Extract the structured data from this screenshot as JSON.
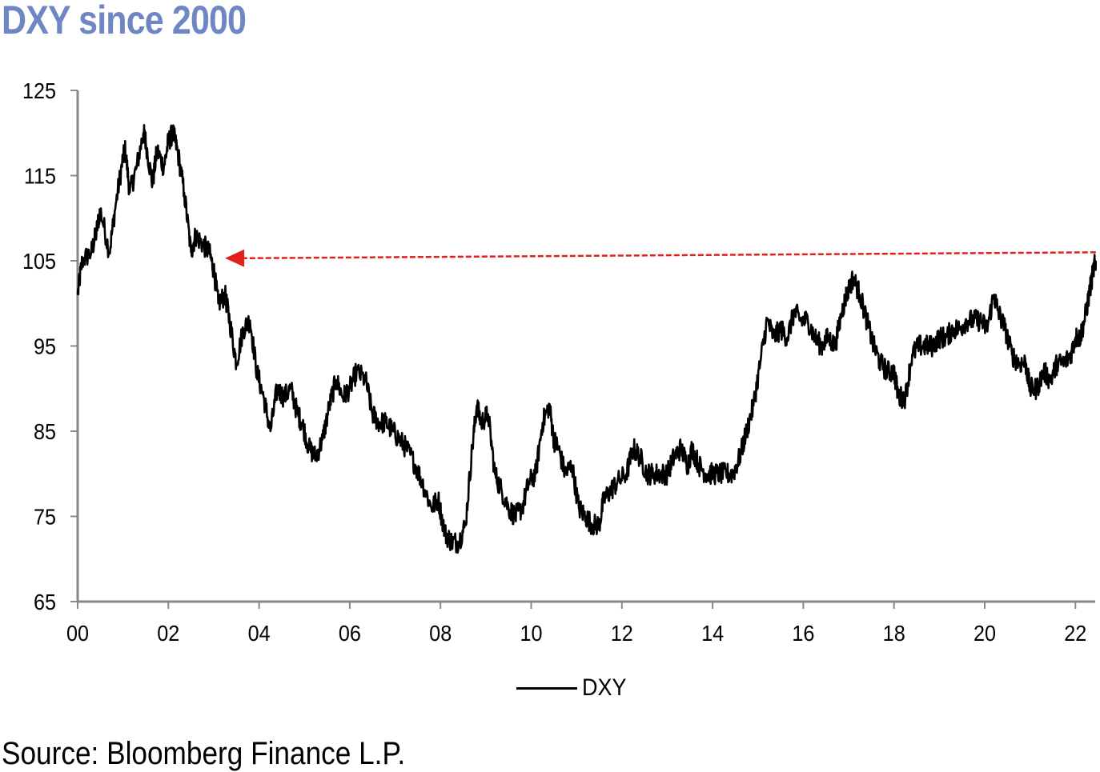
{
  "chart_data": {
    "type": "line",
    "title": "DXY since 2000",
    "source": "Source: Bloomberg Finance L.P.",
    "legend": {
      "position": "bottom-center"
    },
    "colors": {
      "title": "#6f86c4",
      "series": "#000000",
      "annotation": "#e0201b"
    },
    "xlim": [
      2000,
      2022.5
    ],
    "ylim": [
      65,
      125
    ],
    "x_ticks": [
      {
        "value": 2000,
        "label": "00"
      },
      {
        "value": 2002,
        "label": "02"
      },
      {
        "value": 2004,
        "label": "04"
      },
      {
        "value": 2006,
        "label": "06"
      },
      {
        "value": 2008,
        "label": "08"
      },
      {
        "value": 2010,
        "label": "10"
      },
      {
        "value": 2012,
        "label": "12"
      },
      {
        "value": 2014,
        "label": "14"
      },
      {
        "value": 2016,
        "label": "16"
      },
      {
        "value": 2018,
        "label": "18"
      },
      {
        "value": 2020,
        "label": "20"
      },
      {
        "value": 2022,
        "label": "22"
      }
    ],
    "y_ticks": [
      {
        "value": 125,
        "label": "125"
      },
      {
        "value": 115,
        "label": "115"
      },
      {
        "value": 105,
        "label": "105"
      },
      {
        "value": 95,
        "label": "95"
      },
      {
        "value": 85,
        "label": "85"
      },
      {
        "value": 75,
        "label": "75"
      },
      {
        "value": 65,
        "label": "65"
      }
    ],
    "series": [
      {
        "name": "DXY",
        "x": [
          2000.0,
          2000.1,
          2000.3,
          2000.4,
          2000.5,
          2000.7,
          2000.85,
          2001.0,
          2001.05,
          2001.15,
          2001.3,
          2001.45,
          2001.5,
          2001.65,
          2001.75,
          2001.9,
          2002.0,
          2002.1,
          2002.2,
          2002.35,
          2002.5,
          2002.6,
          2002.75,
          2002.9,
          2003.0,
          2003.1,
          2003.25,
          2003.35,
          2003.5,
          2003.65,
          2003.8,
          2003.95,
          2004.1,
          2004.25,
          2004.4,
          2004.55,
          2004.7,
          2004.85,
          2004.95,
          2005.1,
          2005.25,
          2005.4,
          2005.55,
          2005.7,
          2005.85,
          2006.0,
          2006.15,
          2006.35,
          2006.5,
          2006.65,
          2006.8,
          2006.95,
          2007.1,
          2007.25,
          2007.45,
          2007.6,
          2007.8,
          2007.95,
          2008.1,
          2008.25,
          2008.4,
          2008.55,
          2008.7,
          2008.8,
          2008.9,
          2009.05,
          2009.2,
          2009.35,
          2009.5,
          2009.65,
          2009.8,
          2009.95,
          2010.1,
          2010.25,
          2010.4,
          2010.5,
          2010.6,
          2010.75,
          2010.9,
          2011.05,
          2011.2,
          2011.35,
          2011.5,
          2011.6,
          2011.75,
          2011.9,
          2012.1,
          2012.25,
          2012.4,
          2012.55,
          2012.7,
          2012.85,
          2013.0,
          2013.15,
          2013.3,
          2013.45,
          2013.55,
          2013.7,
          2013.85,
          2014.0,
          2014.15,
          2014.3,
          2014.45,
          2014.6,
          2014.75,
          2014.9,
          2015.05,
          2015.2,
          2015.35,
          2015.5,
          2015.65,
          2015.8,
          2015.95,
          2016.1,
          2016.25,
          2016.4,
          2016.55,
          2016.7,
          2016.85,
          2016.95,
          2017.1,
          2017.25,
          2017.4,
          2017.55,
          2017.7,
          2017.85,
          2018.0,
          2018.1,
          2018.25,
          2018.4,
          2018.55,
          2018.7,
          2018.85,
          2019.0,
          2019.15,
          2019.3,
          2019.45,
          2019.6,
          2019.75,
          2019.9,
          2020.05,
          2020.2,
          2020.3,
          2020.45,
          2020.6,
          2020.75,
          2020.9,
          2021.0,
          2021.15,
          2021.3,
          2021.45,
          2021.6,
          2021.75,
          2021.9,
          2022.0,
          2022.1,
          2022.2,
          2022.3,
          2022.4,
          2022.45
        ],
        "values": [
          101,
          105,
          106,
          108,
          111,
          106,
          112,
          117,
          118,
          113,
          116,
          120,
          119,
          114,
          118,
          116,
          119,
          120,
          118,
          113,
          106,
          108,
          107,
          106,
          104,
          100,
          101,
          98,
          93,
          97,
          98,
          92,
          89,
          85,
          90,
          89,
          90,
          87,
          86,
          83,
          82,
          84,
          88,
          91,
          89,
          90,
          92,
          91,
          87,
          86,
          86,
          85,
          84,
          83,
          81,
          79,
          76,
          77,
          73,
          72,
          72,
          74,
          83,
          88,
          86,
          87,
          80,
          78,
          76,
          75,
          76,
          79,
          80,
          86,
          88,
          84,
          83,
          80,
          81,
          76,
          75,
          74,
          74,
          77,
          78,
          79,
          80,
          83,
          82,
          80,
          80,
          80,
          80,
          82,
          83,
          81,
          83,
          81,
          80,
          80,
          80,
          80,
          80,
          82,
          85,
          88,
          93,
          98,
          96,
          97,
          96,
          99,
          98,
          98,
          96,
          95,
          96,
          95,
          99,
          101,
          103,
          101,
          98,
          95,
          93,
          92,
          92,
          89,
          89,
          94,
          95,
          95,
          95,
          96,
          96,
          97,
          97,
          98,
          98,
          98,
          97,
          101,
          99,
          97,
          94,
          93,
          93,
          90,
          90,
          92,
          91,
          93,
          93,
          94,
          96,
          96,
          98,
          101,
          104,
          105
        ]
      }
    ],
    "annotations": [
      {
        "type": "arrow",
        "style": "dashed",
        "from": [
          2022.45,
          106
        ],
        "to": [
          2003.25,
          105.3
        ]
      }
    ]
  }
}
